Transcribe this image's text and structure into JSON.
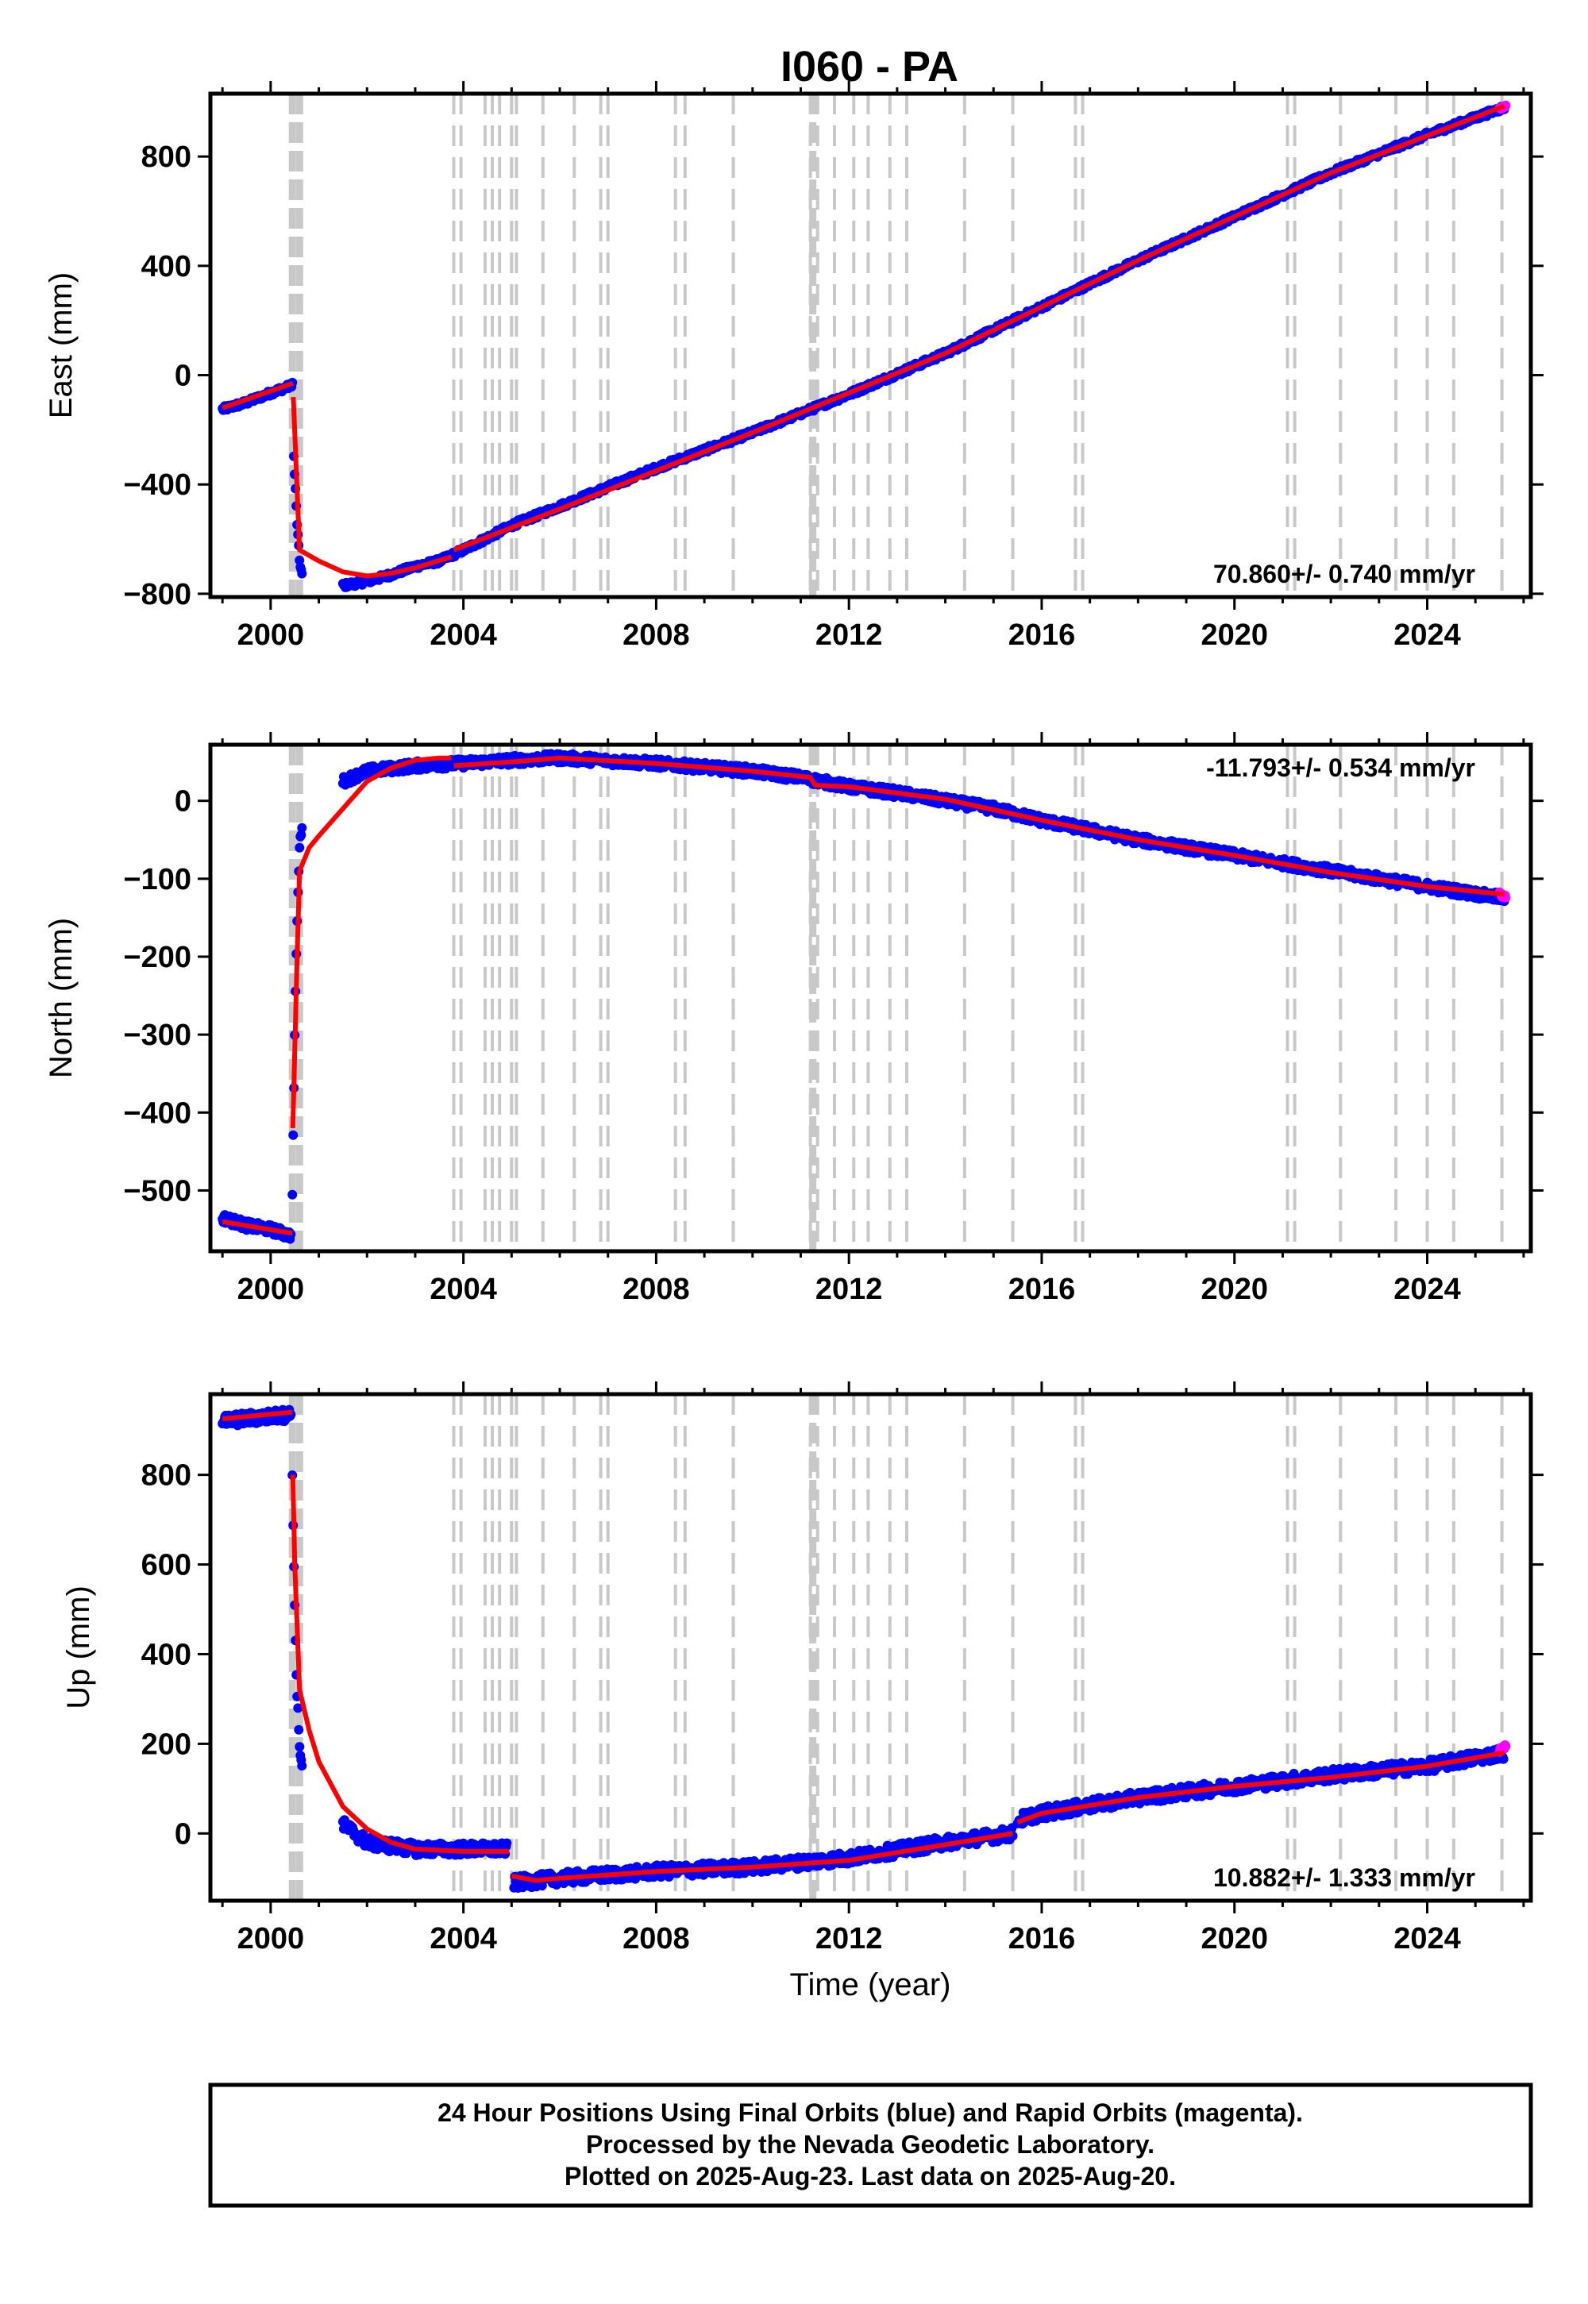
{
  "chart_data": [
    {
      "type": "scatter",
      "title": "I060 - PA",
      "xlabel": "",
      "ylabel": "East (mm)",
      "xlim": [
        1998.75,
        2026.15
      ],
      "ylim": [
        -812,
        1030
      ],
      "xticks": [
        2000,
        2004,
        2008,
        2012,
        2016,
        2020,
        2024
      ],
      "yticks": [
        -800,
        -400,
        0,
        400,
        800
      ],
      "x_tick_labels": [
        "2000",
        "2004",
        "2008",
        "2012",
        "2016",
        "2020",
        "2024"
      ],
      "y_tick_labels": [
        "−800",
        "−400",
        "0",
        "400",
        "800"
      ],
      "rate_text": "70.860+/- 0.740 mm/yr",
      "rate_position": "bottom-right",
      "series": [
        {
          "label": "final orbits",
          "color": "#0000ff",
          "noise": 10,
          "segments": [
            [
              [
                1999.0,
                -125
              ],
              [
                1999.5,
                -100
              ],
              [
                2000.0,
                -65
              ],
              [
                2000.4,
                -40
              ],
              [
                2000.45,
                -30
              ]
            ],
            [
              [
                2000.48,
                -300
              ],
              [
                2000.55,
                -550
              ],
              [
                2000.6,
                -680
              ],
              [
                2000.65,
                -730
              ]
            ],
            [
              [
                2001.5,
                -770
              ],
              [
                2002.0,
                -755
              ],
              [
                2002.5,
                -730
              ],
              [
                2003.0,
                -700
              ],
              [
                2003.5,
                -680
              ],
              [
                2004.0,
                -640
              ],
              [
                2005.0,
                -550
              ],
              [
                2006.0,
                -480
              ],
              [
                2008.0,
                -340
              ],
              [
                2010.0,
                -210
              ],
              [
                2012.0,
                -70
              ],
              [
                2014.0,
                80
              ],
              [
                2016.0,
                250
              ],
              [
                2018.0,
                420
              ],
              [
                2020.0,
                580
              ],
              [
                2022.0,
                740
              ],
              [
                2024.0,
                880
              ],
              [
                2025.6,
                980
              ]
            ]
          ]
        },
        {
          "label": "rapid orbits",
          "color": "#ff00ff",
          "noise": 4,
          "segments": [
            [
              [
                2025.5,
                975
              ],
              [
                2025.63,
                985
              ]
            ]
          ]
        },
        {
          "label": "model",
          "color": "#ff0000",
          "line": true,
          "segments": [
            [
              [
                1999.0,
                -120
              ],
              [
                2000.46,
                -30
              ]
            ],
            [
              [
                2000.47,
                -80
              ],
              [
                2000.6,
                -640
              ],
              [
                2001.0,
                -680
              ],
              [
                2001.5,
                -720
              ],
              [
                2002.0,
                -735
              ],
              [
                2002.5,
                -725
              ],
              [
                2003.0,
                -705
              ],
              [
                2003.75,
                -665
              ]
            ],
            [
              [
                2003.8,
                -640
              ],
              [
                2006.0,
                -490
              ],
              [
                2010.0,
                -210
              ],
              [
                2014.0,
                80
              ],
              [
                2018.0,
                420
              ],
              [
                2022.0,
                740
              ],
              [
                2025.6,
                985
              ]
            ]
          ]
        }
      ]
    },
    {
      "type": "scatter",
      "title": "",
      "xlabel": "",
      "ylabel": "North (mm)",
      "xlim": [
        1998.75,
        2026.15
      ],
      "ylim": [
        -578,
        72
      ],
      "xticks": [
        2000,
        2004,
        2008,
        2012,
        2016,
        2020,
        2024
      ],
      "yticks": [
        -500,
        -400,
        -300,
        -200,
        -100,
        0
      ],
      "x_tick_labels": [
        "2000",
        "2004",
        "2008",
        "2012",
        "2016",
        "2020",
        "2024"
      ],
      "y_tick_labels": [
        "−500",
        "−400",
        "−300",
        "−200",
        "−100",
        "0"
      ],
      "rate_text": "-11.793+/- 0.534 mm/yr",
      "rate_position": "top-right",
      "series": [
        {
          "label": "final orbits",
          "color": "#0000ff",
          "noise": 6,
          "segments": [
            [
              [
                1999.0,
                -535
              ],
              [
                1999.5,
                -545
              ],
              [
                2000.0,
                -550
              ],
              [
                2000.42,
                -558
              ]
            ],
            [
              [
                2000.45,
                -500
              ],
              [
                2000.5,
                -300
              ],
              [
                2000.55,
                -150
              ],
              [
                2000.6,
                -60
              ],
              [
                2000.65,
                -30
              ]
            ],
            [
              [
                2001.5,
                25
              ],
              [
                2002.0,
                38
              ],
              [
                2003.0,
                45
              ],
              [
                2004.0,
                48
              ],
              [
                2005.0,
                52
              ],
              [
                2006.0,
                55
              ],
              [
                2008.0,
                48
              ],
              [
                2010.0,
                38
              ],
              [
                2011.0,
                30
              ],
              [
                2012.0,
                18
              ],
              [
                2013.0,
                10
              ],
              [
                2014.0,
                0
              ],
              [
                2015.0,
                -10
              ],
              [
                2016.0,
                -25
              ],
              [
                2018.0,
                -50
              ],
              [
                2020.0,
                -70
              ],
              [
                2022.0,
                -90
              ],
              [
                2024.0,
                -110
              ],
              [
                2025.6,
                -125
              ]
            ]
          ]
        },
        {
          "label": "rapid orbits",
          "color": "#ff00ff",
          "noise": 3,
          "segments": [
            [
              [
                2025.5,
                -120
              ],
              [
                2025.63,
                -122
              ]
            ]
          ]
        },
        {
          "label": "model",
          "color": "#ff0000",
          "line": true,
          "segments": [
            [
              [
                1999.0,
                -540
              ],
              [
                2000.45,
                -555
              ]
            ],
            [
              [
                2000.46,
                -420
              ],
              [
                2000.55,
                -200
              ],
              [
                2000.6,
                -90
              ],
              [
                2000.8,
                -60
              ],
              [
                2001.0,
                -45
              ],
              [
                2001.5,
                -10
              ],
              [
                2002.0,
                25
              ],
              [
                2002.5,
                42
              ],
              [
                2003.0,
                52
              ],
              [
                2003.5,
                55
              ],
              [
                2003.75,
                55
              ]
            ],
            [
              [
                2003.8,
                45
              ],
              [
                2005.0,
                50
              ],
              [
                2006.0,
                55
              ],
              [
                2008.0,
                48
              ],
              [
                2010.0,
                38
              ],
              [
                2011.2,
                30
              ],
              [
                2011.3,
                20
              ],
              [
                2012.0,
                18
              ],
              [
                2014.0,
                2
              ],
              [
                2016.0,
                -25
              ],
              [
                2018.0,
                -50
              ],
              [
                2020.0,
                -70
              ],
              [
                2022.0,
                -92
              ],
              [
                2024.0,
                -110
              ],
              [
                2025.6,
                -120
              ]
            ]
          ]
        }
      ]
    },
    {
      "type": "scatter",
      "title": "",
      "xlabel": "Time (year)",
      "ylabel": "Up (mm)",
      "xlim": [
        1998.75,
        2026.15
      ],
      "ylim": [
        -150,
        980
      ],
      "xticks": [
        2000,
        2004,
        2008,
        2012,
        2016,
        2020,
        2024
      ],
      "yticks": [
        0,
        200,
        400,
        600,
        800
      ],
      "x_tick_labels": [
        "2000",
        "2004",
        "2008",
        "2012",
        "2016",
        "2020",
        "2024"
      ],
      "y_tick_labels": [
        "0",
        "200",
        "400",
        "600",
        "800"
      ],
      "rate_text": "10.882+/- 1.333 mm/yr",
      "rate_position": "bottom-right",
      "series": [
        {
          "label": "final orbits",
          "color": "#0000ff",
          "noise": 14,
          "segments": [
            [
              [
                1999.0,
                920
              ],
              [
                1999.5,
                925
              ],
              [
                2000.0,
                930
              ],
              [
                2000.42,
                935
              ]
            ],
            [
              [
                2000.45,
                800
              ],
              [
                2000.5,
                500
              ],
              [
                2000.55,
                300
              ],
              [
                2000.6,
                200
              ],
              [
                2000.65,
                150
              ]
            ],
            [
              [
                2001.5,
                20
              ],
              [
                2002.0,
                -20
              ],
              [
                2003.0,
                -35
              ],
              [
                2004.0,
                -35
              ],
              [
                2004.9,
                -35
              ]
            ],
            [
              [
                2005.05,
                -110
              ],
              [
                2006.0,
                -100
              ],
              [
                2008.0,
                -85
              ],
              [
                2010.0,
                -75
              ],
              [
                2012.0,
                -55
              ],
              [
                2014.0,
                -20
              ],
              [
                2015.4,
                0
              ]
            ],
            [
              [
                2015.5,
                30
              ],
              [
                2016.0,
                45
              ],
              [
                2018.0,
                80
              ],
              [
                2020.0,
                105
              ],
              [
                2022.0,
                130
              ],
              [
                2024.0,
                150
              ],
              [
                2025.6,
                180
              ]
            ]
          ]
        },
        {
          "label": "rapid orbits",
          "color": "#ff00ff",
          "noise": 5,
          "segments": [
            [
              [
                2025.5,
                185
              ],
              [
                2025.63,
                195
              ]
            ]
          ]
        },
        {
          "label": "model",
          "color": "#ff0000",
          "line": true,
          "segments": [
            [
              [
                1999.0,
                925
              ],
              [
                2000.45,
                940
              ]
            ],
            [
              [
                2000.46,
                800
              ],
              [
                2000.5,
                600
              ],
              [
                2000.6,
                320
              ],
              [
                2000.8,
                230
              ],
              [
                2001.0,
                160
              ],
              [
                2001.5,
                60
              ],
              [
                2002.0,
                10
              ],
              [
                2002.5,
                -20
              ],
              [
                2003.0,
                -35
              ],
              [
                2004.0,
                -40
              ],
              [
                2004.95,
                -40
              ]
            ],
            [
              [
                2005.0,
                -95
              ],
              [
                2005.5,
                -105
              ],
              [
                2006.0,
                -100
              ],
              [
                2008.0,
                -85
              ],
              [
                2010.0,
                -75
              ],
              [
                2012.0,
                -60
              ],
              [
                2014.0,
                -25
              ],
              [
                2015.4,
                0
              ]
            ],
            [
              [
                2015.5,
                25
              ],
              [
                2016.0,
                45
              ],
              [
                2018.0,
                80
              ],
              [
                2020.0,
                105
              ],
              [
                2022.0,
                125
              ],
              [
                2024.0,
                150
              ],
              [
                2025.6,
                180
              ]
            ]
          ]
        }
      ]
    }
  ],
  "event_lines": {
    "color": "#c8c8c8",
    "thick": [
      2000.45,
      2000.6,
      2011.25
    ],
    "dashed": [
      2003.8,
      2003.95,
      2004.45,
      2004.6,
      2004.75,
      2005.0,
      2005.1,
      2005.65,
      2006.3,
      2006.85,
      2007.0,
      2008.4,
      2008.6,
      2009.6,
      2011.2,
      2011.35,
      2011.7,
      2012.1,
      2012.4,
      2012.85,
      2013.2,
      2014.4,
      2015.4,
      2016.7,
      2016.85,
      2021.1,
      2021.25,
      2022.2,
      2023.35,
      2024.0,
      2024.55,
      2025.55
    ]
  },
  "footer": {
    "line1": "24 Hour Positions Using Final Orbits (blue) and Rapid Orbits (magenta).",
    "line2": "Processed by the Nevada Geodetic Laboratory.",
    "line3": "Plotted on 2025-Aug-23. Last data on 2025-Aug-20."
  }
}
